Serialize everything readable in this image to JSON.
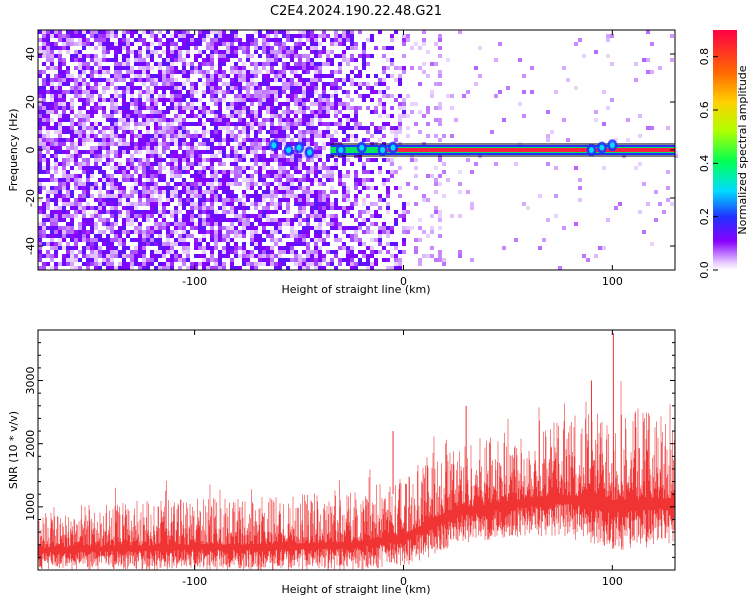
{
  "title": "C2E4.2024.190.22.48.G21",
  "chart_data": [
    {
      "type": "heatmap",
      "title": "C2E4.2024.190.22.48.G21",
      "xlabel": "Height of straight line (km)",
      "ylabel": "Frequency (Hz)",
      "xlim": [
        -175,
        130
      ],
      "ylim": [
        -50,
        50
      ],
      "x_ticks": [
        -100,
        0,
        100
      ],
      "y_ticks": [
        -40,
        -20,
        0,
        20,
        40
      ],
      "colorbar": {
        "label": "Normalized spectral amplitude",
        "range": [
          0,
          0.9
        ],
        "ticks": [
          0.0,
          0.2,
          0.4,
          0.6,
          0.8
        ],
        "colormap": "rainbow"
      },
      "features": [
        {
          "x_range": [
            -175,
            0
          ],
          "description_value": 0.3
        },
        {
          "x_range": [
            -35,
            130
          ],
          "y": 0,
          "amplitude": 0.9
        },
        {
          "x_range": [
            88,
            102
          ],
          "y": 0,
          "amplitude": 0.5
        }
      ]
    },
    {
      "type": "area",
      "xlabel": "Height of straight line (km)",
      "ylabel": "SNR (10 * v/v)",
      "xlim": [
        -175,
        130
      ],
      "ylim": [
        0,
        3800
      ],
      "x_ticks": [
        -100,
        0,
        100
      ],
      "y_ticks": [
        1000,
        2000,
        3000
      ],
      "color": "#f03333",
      "envelope": {
        "x": [
          -175,
          -150,
          -125,
          -100,
          -75,
          -50,
          -25,
          0,
          10,
          25,
          50,
          75,
          100,
          130
        ],
        "low": [
          0,
          0,
          0,
          0,
          0,
          0,
          0,
          50,
          150,
          400,
          500,
          550,
          300,
          400
        ],
        "high": [
          1000,
          1050,
          1100,
          1150,
          1150,
          1200,
          1250,
          1500,
          1800,
          2000,
          2200,
          2400,
          2600,
          2500
        ]
      },
      "peaks": [
        {
          "x": 100.5,
          "y": 3750
        },
        {
          "x": -5,
          "y": 2200
        },
        {
          "x": 30,
          "y": 2600
        },
        {
          "x": 90,
          "y": 3000
        }
      ]
    }
  ]
}
